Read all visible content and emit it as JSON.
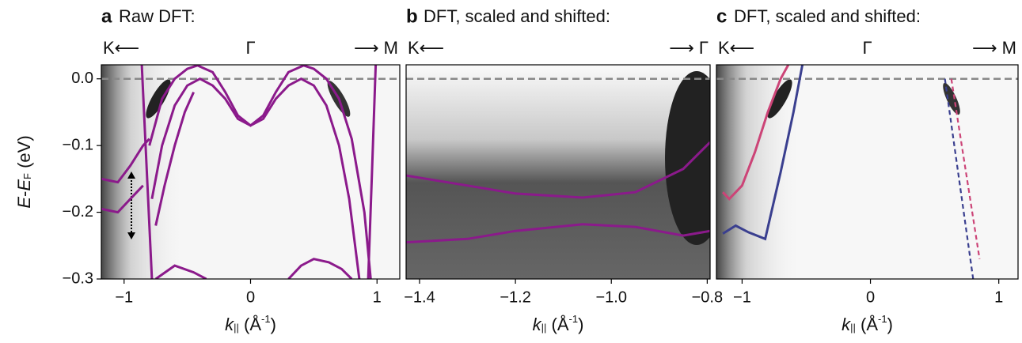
{
  "chart_data": [
    {
      "type": "line",
      "letter": "a",
      "title": "Raw DFT:",
      "top_labels": [
        "K⟵",
        "Γ",
        "⟶ M"
      ],
      "ylabel": [
        "E",
        "-",
        "E",
        "F",
        " (eV)"
      ],
      "xlabel": [
        "k",
        "||",
        " (Å",
        "-1",
        ")"
      ],
      "xlim": [
        -1.18,
        1.18
      ],
      "ylim": [
        -0.3,
        0.021
      ],
      "xticks": [
        {
          "value": -1,
          "label": "−1"
        },
        0,
        1
      ],
      "yticks": [
        {
          "value": 0,
          "label": "0.0"
        },
        {
          "value": -0.1,
          "label": "−0.1"
        },
        {
          "value": -0.2,
          "label": "−0.2"
        },
        {
          "value": -0.3,
          "label": "−0.3"
        }
      ],
      "hline": 0,
      "series": [
        {
          "color": "#8b1a8b",
          "x": [
            -0.8,
            -0.7,
            -0.6,
            -0.5,
            -0.42,
            -0.3,
            -0.2,
            -0.1,
            0,
            0.1,
            0.2,
            0.3,
            0.42,
            0.5,
            0.6,
            0.7,
            0.8,
            0.9,
            0.95
          ],
          "y": [
            -0.1,
            -0.03,
            0.0,
            0.015,
            0.02,
            0.01,
            -0.02,
            -0.055,
            -0.07,
            -0.055,
            -0.02,
            0.01,
            0.02,
            0.015,
            0.0,
            -0.03,
            -0.09,
            -0.2,
            -0.3
          ]
        },
        {
          "color": "#8b1a8b",
          "x": [
            -0.78,
            -0.7,
            -0.6,
            -0.5,
            -0.4,
            -0.3,
            -0.2,
            -0.1,
            0,
            0.1,
            0.2,
            0.3,
            0.4,
            0.5,
            0.6,
            0.7,
            0.78,
            0.86
          ],
          "y": [
            -0.18,
            -0.1,
            -0.04,
            -0.01,
            0.0,
            -0.01,
            -0.03,
            -0.06,
            -0.07,
            -0.06,
            -0.03,
            -0.01,
            0.0,
            -0.01,
            -0.04,
            -0.1,
            -0.18,
            -0.3
          ]
        },
        {
          "color": "#8b1a8b",
          "x": [
            -0.75,
            -0.68,
            -0.6,
            -0.52,
            -0.45
          ],
          "y": [
            -0.22,
            -0.16,
            -0.1,
            -0.05,
            -0.02
          ]
        },
        {
          "color": "#8b1a8b",
          "x": [
            -0.86,
            -0.82,
            -0.78
          ],
          "y": [
            0.021,
            -0.14,
            -0.3
          ]
        },
        {
          "color": "#8b1a8b",
          "x": [
            0.99,
            0.96,
            0.93
          ],
          "y": [
            0.021,
            -0.14,
            -0.3
          ]
        },
        {
          "color": "#8b1a8b",
          "x": [
            -1.18,
            -1.05,
            -0.95,
            -0.85,
            -0.8
          ],
          "y": [
            -0.15,
            -0.155,
            -0.13,
            -0.1,
            -0.09
          ]
        },
        {
          "color": "#8b1a8b",
          "x": [
            -1.18,
            -1.05,
            -0.95,
            -0.85
          ],
          "y": [
            -0.195,
            -0.2,
            -0.18,
            -0.16
          ]
        },
        {
          "color": "#8b1a8b",
          "x": [
            -0.75,
            -0.6,
            -0.45,
            -0.35
          ],
          "y": [
            -0.3,
            -0.28,
            -0.29,
            -0.3
          ]
        },
        {
          "color": "#8b1a8b",
          "x": [
            0.3,
            0.4,
            0.5,
            0.62,
            0.72,
            0.8
          ],
          "y": [
            -0.3,
            -0.28,
            -0.27,
            -0.275,
            -0.285,
            -0.3
          ]
        }
      ]
    },
    {
      "type": "line",
      "letter": "b",
      "title": "DFT, scaled and shifted:",
      "top_labels": [
        "K⟵",
        "⟶ Γ"
      ],
      "xlabel": [
        "k",
        "||",
        " (Å",
        "-1",
        ")"
      ],
      "xlim": [
        -1.428,
        -0.794
      ],
      "ylim": [
        -0.3,
        0.021
      ],
      "xticks": [
        {
          "value": -1.4,
          "label": "−1.4"
        },
        {
          "value": -1.2,
          "label": "−1.2"
        },
        {
          "value": -1.0,
          "label": "−1.0"
        },
        {
          "value": -0.8,
          "label": "−0.8"
        }
      ],
      "hline": 0,
      "series": [
        {
          "color": "#8b1a8b",
          "x": [
            -1.428,
            -1.3,
            -1.2,
            -1.06,
            -0.95,
            -0.85,
            -0.794
          ],
          "y": [
            -0.145,
            -0.16,
            -0.172,
            -0.178,
            -0.17,
            -0.135,
            -0.095
          ]
        },
        {
          "color": "#8b1a8b",
          "x": [
            -1.428,
            -1.3,
            -1.2,
            -1.06,
            -0.95,
            -0.85,
            -0.794
          ],
          "y": [
            -0.245,
            -0.24,
            -0.228,
            -0.218,
            -0.222,
            -0.235,
            -0.228
          ]
        }
      ]
    },
    {
      "type": "line",
      "letter": "c",
      "title": "DFT,  scaled and shifted:",
      "top_labels": [
        "K⟵",
        "Γ",
        "⟶ M"
      ],
      "xlabel": [
        "k",
        "||",
        " (Å",
        "-1",
        ")"
      ],
      "xlim": [
        -1.2,
        1.15
      ],
      "ylim": [
        -0.3,
        0.021
      ],
      "xticks": [
        {
          "value": -1,
          "label": "−1"
        },
        0,
        1
      ],
      "hline": 0,
      "series": [
        {
          "color": "#cc4477",
          "x": [
            -1.15,
            -1.1,
            -1.0,
            -0.9,
            -0.8,
            -0.7,
            -0.64
          ],
          "y": [
            -0.17,
            -0.18,
            -0.16,
            -0.11,
            -0.05,
            0.0,
            0.021
          ]
        },
        {
          "color": "#3a3f8f",
          "x": [
            -1.15,
            -1.05,
            -0.95,
            -0.82,
            -0.7,
            -0.6,
            -0.53
          ],
          "y": [
            -0.232,
            -0.22,
            -0.23,
            -0.24,
            -0.14,
            -0.05,
            0.021
          ]
        },
        {
          "color": "#3a3f8f",
          "dashed": true,
          "x": [
            0.58,
            0.8
          ],
          "y": [
            0.0,
            -0.3
          ]
        },
        {
          "color": "#cc4477",
          "dashed": true,
          "x": [
            0.63,
            0.85
          ],
          "y": [
            0.0,
            -0.27
          ]
        }
      ]
    }
  ]
}
